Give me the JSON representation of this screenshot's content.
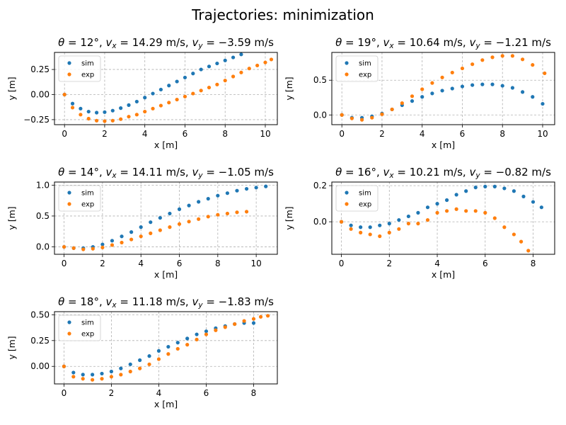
{
  "figure": {
    "suptitle": "Trajectories: minimization"
  },
  "colors": {
    "sim": "#1f77b4",
    "exp": "#ff7f0e",
    "grid": "#b0b0b0"
  },
  "chart_data": [
    {
      "type": "scatter",
      "title": "θ = 12°, vx = 14.29 m/s, vy = −3.59 m/s",
      "title_parts": {
        "theta": "12",
        "vx": "14.29",
        "vy": "−3.59",
        "unit": "m/s"
      },
      "xlabel": "x [m]",
      "ylabel": "y [m]",
      "xlim": [
        -0.5,
        10.6
      ],
      "ylim": [
        -0.3,
        0.42
      ],
      "xticks": [
        0,
        2,
        4,
        6,
        8,
        10
      ],
      "yticks": [
        -0.25,
        0.0,
        0.25
      ],
      "ytick_labels": [
        "−0.25",
        "0.00",
        "0.25"
      ],
      "grid": true,
      "legend": "top-left",
      "series": [
        {
          "name": "sim",
          "x": [
            0.0,
            0.4,
            0.8,
            1.2,
            1.6,
            2.0,
            2.4,
            2.8,
            3.2,
            3.6,
            4.0,
            4.4,
            4.8,
            5.2,
            5.6,
            6.0,
            6.4,
            6.8,
            7.2,
            7.6,
            8.0,
            8.4,
            8.8
          ],
          "y": [
            0.0,
            -0.09,
            -0.14,
            -0.17,
            -0.18,
            -0.175,
            -0.16,
            -0.135,
            -0.105,
            -0.07,
            -0.03,
            0.01,
            0.05,
            0.09,
            0.13,
            0.17,
            0.21,
            0.25,
            0.28,
            0.31,
            0.34,
            0.37,
            0.4
          ]
        },
        {
          "name": "exp",
          "x": [
            0.0,
            0.4,
            0.8,
            1.2,
            1.6,
            2.0,
            2.4,
            2.8,
            3.2,
            3.6,
            4.0,
            4.4,
            4.8,
            5.2,
            5.6,
            6.0,
            6.4,
            6.8,
            7.2,
            7.6,
            8.0,
            8.4,
            8.8,
            9.2,
            9.6,
            10.0,
            10.3
          ],
          "y": [
            0.0,
            -0.13,
            -0.2,
            -0.24,
            -0.26,
            -0.265,
            -0.26,
            -0.245,
            -0.22,
            -0.2,
            -0.17,
            -0.14,
            -0.11,
            -0.08,
            -0.05,
            -0.02,
            0.01,
            0.04,
            0.07,
            0.1,
            0.14,
            0.18,
            0.22,
            0.26,
            0.29,
            0.32,
            0.35
          ]
        }
      ]
    },
    {
      "type": "scatter",
      "title": "θ = 19°, vx = 10.64 m/s, vy = −1.21 m/s",
      "title_parts": {
        "theta": "19",
        "vx": "10.64",
        "vy": "−1.21",
        "unit": "m/s"
      },
      "xlabel": "x [m]",
      "ylabel": "y [m]",
      "xlim": [
        -0.5,
        10.6
      ],
      "ylim": [
        -0.14,
        0.9
      ],
      "xticks": [
        0,
        2,
        4,
        6,
        8,
        10
      ],
      "yticks": [
        0.0,
        0.5
      ],
      "ytick_labels": [
        "0.0",
        "0.5"
      ],
      "grid": true,
      "legend": "top-left",
      "series": [
        {
          "name": "sim",
          "x": [
            0.0,
            0.5,
            1.0,
            1.5,
            2.0,
            2.5,
            3.0,
            3.5,
            4.0,
            4.5,
            5.0,
            5.5,
            6.0,
            6.5,
            7.0,
            7.5,
            8.0,
            8.5,
            9.0,
            9.5,
            10.0
          ],
          "y": [
            0.0,
            -0.04,
            -0.04,
            -0.02,
            0.02,
            0.08,
            0.14,
            0.2,
            0.26,
            0.31,
            0.35,
            0.38,
            0.41,
            0.43,
            0.44,
            0.44,
            0.42,
            0.39,
            0.33,
            0.26,
            0.16
          ]
        },
        {
          "name": "exp",
          "x": [
            0.0,
            0.5,
            1.0,
            1.5,
            2.0,
            2.5,
            3.0,
            3.5,
            4.0,
            4.5,
            5.0,
            5.5,
            6.0,
            6.5,
            7.0,
            7.5,
            8.0,
            8.5,
            9.0,
            9.5,
            10.1
          ],
          "y": [
            0.0,
            -0.05,
            -0.07,
            -0.04,
            0.01,
            0.08,
            0.17,
            0.27,
            0.37,
            0.46,
            0.54,
            0.61,
            0.67,
            0.73,
            0.79,
            0.83,
            0.85,
            0.85,
            0.8,
            0.72,
            0.6
          ]
        }
      ]
    },
    {
      "type": "scatter",
      "title": "θ = 14°, vx = 14.11 m/s, vy = −1.05 m/s",
      "title_parts": {
        "theta": "14",
        "vx": "14.11",
        "vy": "−1.05",
        "unit": "m/s"
      },
      "xlabel": "x [m]",
      "ylabel": "y [m]",
      "xlim": [
        -0.5,
        11.1
      ],
      "ylim": [
        -0.12,
        1.05
      ],
      "xticks": [
        0,
        2,
        4,
        6,
        8,
        10
      ],
      "yticks": [
        0.0,
        0.5,
        1.0
      ],
      "ytick_labels": [
        "0.0",
        "0.5",
        "1.0"
      ],
      "grid": true,
      "legend": "top-left",
      "series": [
        {
          "name": "sim",
          "x": [
            0.0,
            0.5,
            1.0,
            1.5,
            2.0,
            2.5,
            3.0,
            3.5,
            4.0,
            4.5,
            5.0,
            5.5,
            6.0,
            6.5,
            7.0,
            7.5,
            8.0,
            8.5,
            9.0,
            9.5,
            10.0,
            10.5
          ],
          "y": [
            0.0,
            -0.02,
            -0.02,
            0.0,
            0.04,
            0.1,
            0.17,
            0.24,
            0.32,
            0.4,
            0.47,
            0.54,
            0.61,
            0.67,
            0.73,
            0.78,
            0.83,
            0.87,
            0.91,
            0.94,
            0.96,
            0.98
          ]
        },
        {
          "name": "exp",
          "x": [
            0.0,
            0.5,
            1.0,
            1.5,
            2.0,
            2.5,
            3.0,
            3.5,
            4.0,
            4.5,
            5.0,
            5.5,
            6.0,
            6.5,
            7.0,
            7.5,
            8.0,
            8.5,
            9.0,
            9.5
          ],
          "y": [
            0.0,
            -0.02,
            -0.04,
            -0.03,
            -0.01,
            0.03,
            0.07,
            0.12,
            0.17,
            0.22,
            0.27,
            0.32,
            0.37,
            0.41,
            0.45,
            0.49,
            0.52,
            0.54,
            0.56,
            0.57
          ]
        }
      ]
    },
    {
      "type": "scatter",
      "title": "θ = 16°, vx = 10.21 m/s, vy = −0.82 m/s",
      "title_parts": {
        "theta": "16",
        "vx": "10.21",
        "vy": "−0.82",
        "unit": "m/s"
      },
      "xlabel": "x [m]",
      "ylabel": "y [m]",
      "xlim": [
        -0.4,
        8.9
      ],
      "ylim": [
        -0.18,
        0.22
      ],
      "xticks": [
        0,
        2,
        4,
        6,
        8
      ],
      "yticks": [
        0.0,
        0.2
      ],
      "ytick_labels": [
        "0.0",
        "0.2"
      ],
      "grid": true,
      "legend": "top-left",
      "series": [
        {
          "name": "sim",
          "x": [
            0.0,
            0.4,
            0.8,
            1.2,
            1.6,
            2.0,
            2.4,
            2.8,
            3.2,
            3.6,
            4.0,
            4.4,
            4.8,
            5.2,
            5.6,
            6.0,
            6.4,
            6.8,
            7.2,
            7.6,
            8.0,
            8.35
          ],
          "y": [
            0.0,
            -0.02,
            -0.03,
            -0.03,
            -0.02,
            -0.01,
            0.01,
            0.03,
            0.05,
            0.08,
            0.1,
            0.12,
            0.15,
            0.17,
            0.19,
            0.195,
            0.195,
            0.185,
            0.17,
            0.14,
            0.11,
            0.08
          ]
        },
        {
          "name": "exp",
          "x": [
            0.0,
            0.4,
            0.8,
            1.2,
            1.6,
            2.0,
            2.4,
            2.8,
            3.2,
            3.6,
            4.0,
            4.4,
            4.8,
            5.2,
            5.6,
            6.0,
            6.4,
            6.8,
            7.2,
            7.5,
            7.8
          ],
          "y": [
            0.0,
            -0.04,
            -0.06,
            -0.07,
            -0.08,
            -0.06,
            -0.04,
            -0.01,
            -0.01,
            0.01,
            0.05,
            0.06,
            0.07,
            0.06,
            0.06,
            0.05,
            0.02,
            -0.03,
            -0.07,
            -0.11,
            -0.16
          ]
        }
      ]
    },
    {
      "type": "scatter",
      "title": "θ = 18°, vx = 11.18 m/s, vy = −1.83 m/s",
      "title_parts": {
        "theta": "18",
        "vx": "11.18",
        "vy": "−1.83",
        "unit": "m/s"
      },
      "xlabel": "x [m]",
      "ylabel": "y [m]",
      "xlim": [
        -0.4,
        9.0
      ],
      "ylim": [
        -0.17,
        0.53
      ],
      "xticks": [
        0,
        2,
        4,
        6,
        8
      ],
      "yticks": [
        0.0,
        0.25,
        0.5
      ],
      "ytick_labels": [
        "0.00",
        "0.25",
        "0.50"
      ],
      "grid": true,
      "legend": "top-left",
      "series": [
        {
          "name": "sim",
          "x": [
            0.0,
            0.4,
            0.8,
            1.2,
            1.6,
            2.0,
            2.4,
            2.8,
            3.2,
            3.6,
            4.0,
            4.4,
            4.8,
            5.2,
            5.6,
            6.0,
            6.4,
            6.8,
            7.2,
            7.6,
            8.0
          ],
          "y": [
            0.0,
            -0.06,
            -0.08,
            -0.08,
            -0.07,
            -0.05,
            -0.02,
            0.02,
            0.06,
            0.1,
            0.15,
            0.19,
            0.23,
            0.27,
            0.31,
            0.34,
            0.37,
            0.39,
            0.41,
            0.42,
            0.42
          ]
        },
        {
          "name": "exp",
          "x": [
            0.0,
            0.4,
            0.8,
            1.2,
            1.6,
            2.0,
            2.4,
            2.8,
            3.2,
            3.6,
            4.0,
            4.4,
            4.8,
            5.2,
            5.6,
            6.0,
            6.4,
            6.8,
            7.2,
            7.6,
            8.0,
            8.3,
            8.6
          ],
          "y": [
            0.0,
            -0.1,
            -0.12,
            -0.13,
            -0.12,
            -0.1,
            -0.08,
            -0.05,
            -0.02,
            0.02,
            0.07,
            0.12,
            0.17,
            0.21,
            0.26,
            0.31,
            0.35,
            0.38,
            0.41,
            0.44,
            0.46,
            0.48,
            0.49
          ]
        }
      ]
    }
  ]
}
